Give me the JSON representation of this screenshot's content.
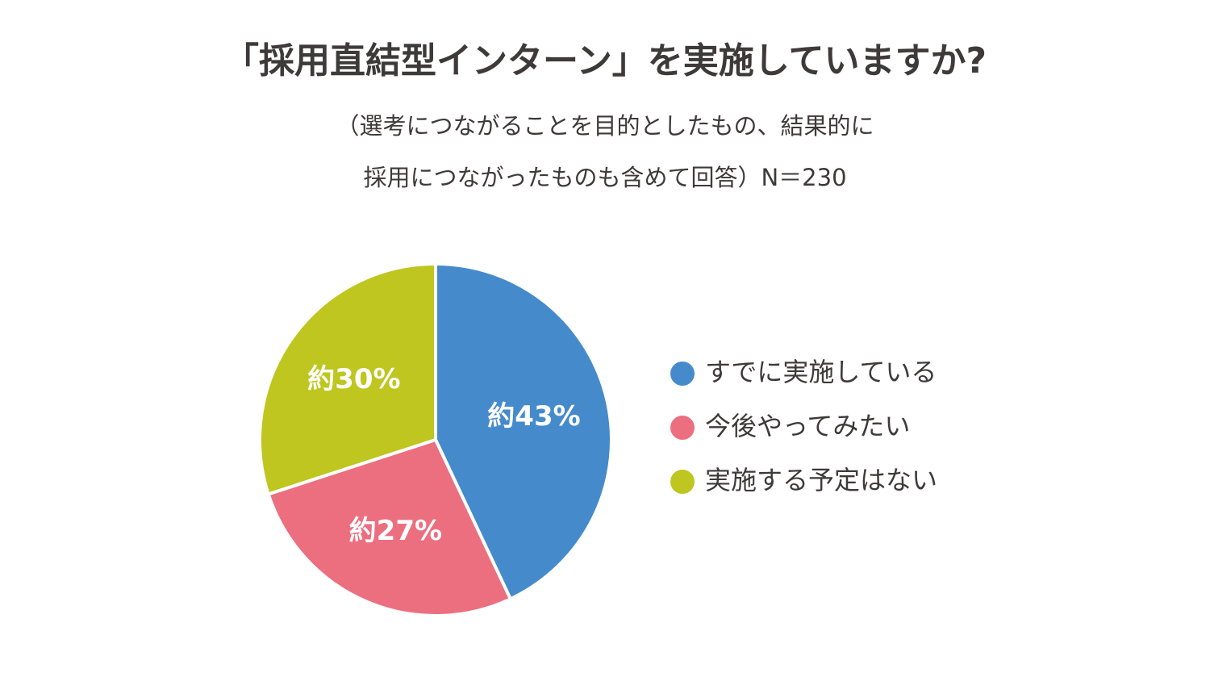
{
  "chart_data": {
    "type": "pie",
    "title": "「採用直結型インターン」を実施していますか?",
    "subtitle": [
      "（選考につながることを目的としたもの、結果的に",
      "採用につながったものも含めて回答）N＝230"
    ],
    "categories": [
      "すでに実施している",
      "今後やってみたい",
      "実施する予定はない"
    ],
    "values": [
      43,
      27,
      30
    ],
    "value_labels": [
      "約43%",
      "約27%",
      "約30%"
    ],
    "colors": [
      "#458bcb",
      "#ec6f7f",
      "#bec61f"
    ]
  }
}
